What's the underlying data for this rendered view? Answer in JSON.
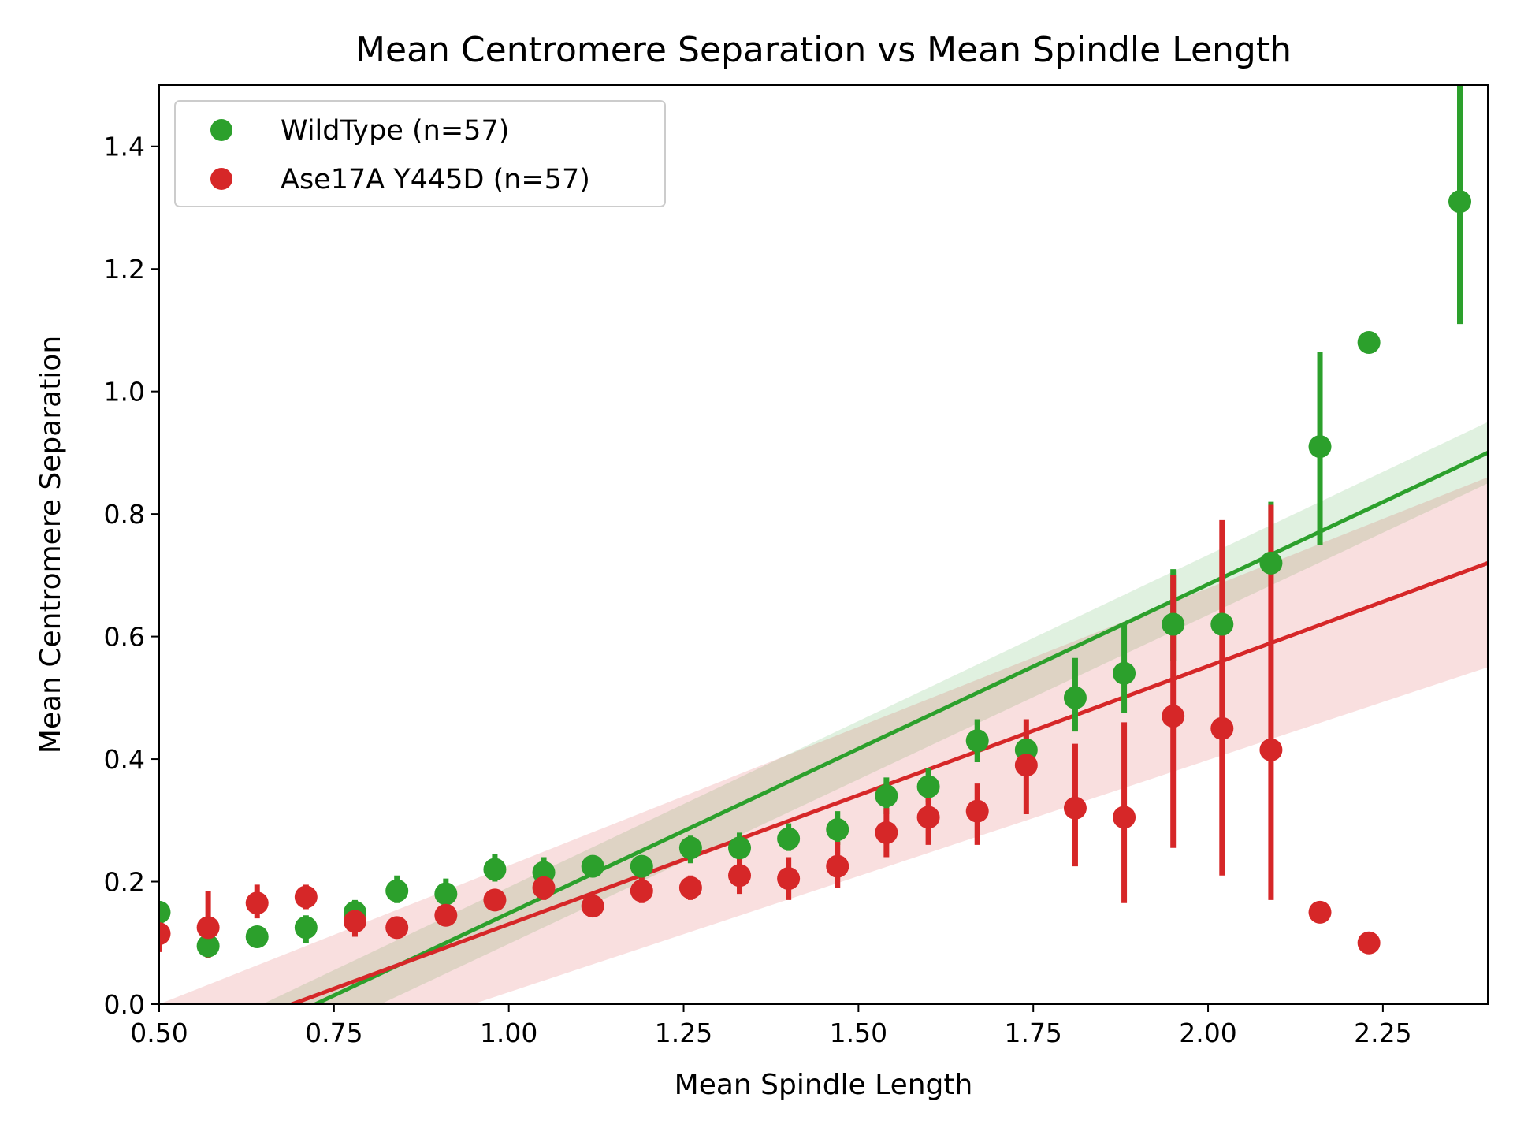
{
  "chart_data": {
    "type": "scatter",
    "title": "Mean Centromere Separation vs Mean Spindle Length",
    "xlabel": "Mean Spindle Length",
    "ylabel": "Mean Centromere Separation",
    "xlim": [
      0.5,
      2.4
    ],
    "ylim": [
      0.0,
      1.5
    ],
    "x_ticks": [
      "0.50",
      "0.75",
      "1.00",
      "1.25",
      "1.50",
      "1.75",
      "2.00",
      "2.25"
    ],
    "y_ticks": [
      "0.0",
      "0.2",
      "0.4",
      "0.6",
      "0.8",
      "1.0",
      "1.2",
      "1.4"
    ],
    "grid": false,
    "legend": "top-left",
    "series": [
      {
        "name": "WildType (n=57)",
        "color": "#2ca02c",
        "points": [
          {
            "x": 0.5,
            "y": 0.15,
            "lo": 0.15,
            "hi": 0.15
          },
          {
            "x": 0.57,
            "y": 0.095,
            "lo": 0.085,
            "hi": 0.105
          },
          {
            "x": 0.64,
            "y": 0.11,
            "lo": 0.11,
            "hi": 0.11
          },
          {
            "x": 0.71,
            "y": 0.125,
            "lo": 0.1,
            "hi": 0.145
          },
          {
            "x": 0.78,
            "y": 0.15,
            "lo": 0.14,
            "hi": 0.17
          },
          {
            "x": 0.84,
            "y": 0.185,
            "lo": 0.165,
            "hi": 0.21
          },
          {
            "x": 0.91,
            "y": 0.18,
            "lo": 0.16,
            "hi": 0.205
          },
          {
            "x": 0.98,
            "y": 0.22,
            "lo": 0.2,
            "hi": 0.245
          },
          {
            "x": 1.05,
            "y": 0.215,
            "lo": 0.195,
            "hi": 0.24
          },
          {
            "x": 1.12,
            "y": 0.225,
            "lo": 0.21,
            "hi": 0.24
          },
          {
            "x": 1.19,
            "y": 0.225,
            "lo": 0.2,
            "hi": 0.24
          },
          {
            "x": 1.26,
            "y": 0.255,
            "lo": 0.23,
            "hi": 0.275
          },
          {
            "x": 1.33,
            "y": 0.255,
            "lo": 0.23,
            "hi": 0.28
          },
          {
            "x": 1.4,
            "y": 0.27,
            "lo": 0.25,
            "hi": 0.295
          },
          {
            "x": 1.47,
            "y": 0.285,
            "lo": 0.26,
            "hi": 0.315
          },
          {
            "x": 1.54,
            "y": 0.34,
            "lo": 0.31,
            "hi": 0.37
          },
          {
            "x": 1.6,
            "y": 0.355,
            "lo": 0.33,
            "hi": 0.385
          },
          {
            "x": 1.67,
            "y": 0.43,
            "lo": 0.395,
            "hi": 0.465
          },
          {
            "x": 1.74,
            "y": 0.415,
            "lo": 0.39,
            "hi": 0.44
          },
          {
            "x": 1.81,
            "y": 0.5,
            "lo": 0.445,
            "hi": 0.565
          },
          {
            "x": 1.88,
            "y": 0.54,
            "lo": 0.475,
            "hi": 0.62
          },
          {
            "x": 1.95,
            "y": 0.62,
            "lo": 0.56,
            "hi": 0.71
          },
          {
            "x": 2.02,
            "y": 0.62,
            "lo": 0.62,
            "hi": 0.62
          },
          {
            "x": 2.09,
            "y": 0.72,
            "lo": 0.7,
            "hi": 0.82
          },
          {
            "x": 2.16,
            "y": 0.91,
            "lo": 0.75,
            "hi": 1.065
          },
          {
            "x": 2.23,
            "y": 1.08,
            "lo": 1.08,
            "hi": 1.08
          },
          {
            "x": 2.36,
            "y": 1.31,
            "lo": 1.11,
            "hi": 1.5
          }
        ],
        "fit": {
          "x0": 0.5,
          "y0": -0.12,
          "x1": 2.4,
          "y1": 0.9,
          "band_lo": [
            -0.17,
            0.85
          ],
          "band_hi": [
            -0.08,
            0.95
          ]
        }
      },
      {
        "name": "Ase17A Y445D (n=57)",
        "color": "#d62728",
        "points": [
          {
            "x": 0.5,
            "y": 0.115,
            "lo": 0.085,
            "hi": 0.145
          },
          {
            "x": 0.57,
            "y": 0.125,
            "lo": 0.075,
            "hi": 0.185
          },
          {
            "x": 0.64,
            "y": 0.165,
            "lo": 0.14,
            "hi": 0.195
          },
          {
            "x": 0.71,
            "y": 0.175,
            "lo": 0.155,
            "hi": 0.195
          },
          {
            "x": 0.78,
            "y": 0.135,
            "lo": 0.11,
            "hi": 0.155
          },
          {
            "x": 0.84,
            "y": 0.125,
            "lo": 0.11,
            "hi": 0.14
          },
          {
            "x": 0.91,
            "y": 0.145,
            "lo": 0.13,
            "hi": 0.16
          },
          {
            "x": 0.98,
            "y": 0.17,
            "lo": 0.155,
            "hi": 0.185
          },
          {
            "x": 1.05,
            "y": 0.19,
            "lo": 0.17,
            "hi": 0.205
          },
          {
            "x": 1.12,
            "y": 0.16,
            "lo": 0.145,
            "hi": 0.175
          },
          {
            "x": 1.19,
            "y": 0.185,
            "lo": 0.165,
            "hi": 0.21
          },
          {
            "x": 1.26,
            "y": 0.19,
            "lo": 0.17,
            "hi": 0.21
          },
          {
            "x": 1.33,
            "y": 0.21,
            "lo": 0.18,
            "hi": 0.24
          },
          {
            "x": 1.4,
            "y": 0.205,
            "lo": 0.17,
            "hi": 0.24
          },
          {
            "x": 1.47,
            "y": 0.225,
            "lo": 0.19,
            "hi": 0.265
          },
          {
            "x": 1.54,
            "y": 0.28,
            "lo": 0.24,
            "hi": 0.32
          },
          {
            "x": 1.6,
            "y": 0.305,
            "lo": 0.26,
            "hi": 0.35
          },
          {
            "x": 1.67,
            "y": 0.315,
            "lo": 0.26,
            "hi": 0.36
          },
          {
            "x": 1.74,
            "y": 0.39,
            "lo": 0.31,
            "hi": 0.465
          },
          {
            "x": 1.81,
            "y": 0.32,
            "lo": 0.225,
            "hi": 0.425
          },
          {
            "x": 1.88,
            "y": 0.305,
            "lo": 0.165,
            "hi": 0.46
          },
          {
            "x": 1.95,
            "y": 0.47,
            "lo": 0.255,
            "hi": 0.7
          },
          {
            "x": 2.02,
            "y": 0.45,
            "lo": 0.21,
            "hi": 0.79
          },
          {
            "x": 2.09,
            "y": 0.415,
            "lo": 0.17,
            "hi": 0.815
          },
          {
            "x": 2.16,
            "y": 0.15,
            "lo": 0.15,
            "hi": 0.15
          },
          {
            "x": 2.23,
            "y": 0.1,
            "lo": 0.1,
            "hi": 0.1
          }
        ],
        "fit": {
          "x0": 0.5,
          "y0": -0.08,
          "x1": 2.4,
          "y1": 0.72,
          "band_lo": [
            -0.17,
            0.55
          ],
          "band_hi": [
            0.0,
            0.86
          ]
        }
      }
    ]
  }
}
